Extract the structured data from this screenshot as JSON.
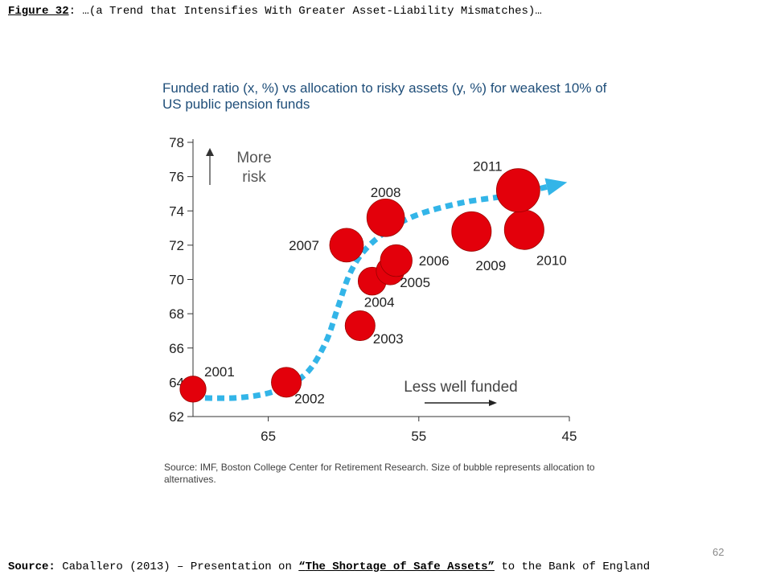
{
  "heading": {
    "label": "Figure 32",
    "separator": ":",
    "text": " …(a Trend that Intensifies With Greater Asset-Liability Mismatches)…"
  },
  "chart_data": {
    "type": "scatter",
    "title": "Funded ratio (x, %) vs allocation to risky assets (y, %) for weakest 10% of US public pension funds",
    "xlabel": "",
    "ylabel": "",
    "xlim": [
      70,
      45
    ],
    "ylim": [
      62,
      78
    ],
    "x_ticks": [
      "65",
      "55",
      "45"
    ],
    "y_ticks": [
      "62",
      "64",
      "66",
      "68",
      "70",
      "72",
      "74",
      "76",
      "78"
    ],
    "grid": false,
    "bubble_color": "#e3000b",
    "trend_color": "#33b5e8",
    "points": [
      {
        "label": "2001",
        "x": 70.0,
        "y": 63.6,
        "size": 0.6
      },
      {
        "label": "2002",
        "x": 63.8,
        "y": 64.0,
        "size": 0.8
      },
      {
        "label": "2003",
        "x": 58.9,
        "y": 67.3,
        "size": 0.8
      },
      {
        "label": "2004",
        "x": 58.1,
        "y": 69.9,
        "size": 0.7
      },
      {
        "label": "2005",
        "x": 56.9,
        "y": 70.5,
        "size": 0.7
      },
      {
        "label": "2006",
        "x": 56.5,
        "y": 71.1,
        "size": 0.9
      },
      {
        "label": "2007",
        "x": 59.8,
        "y": 72.0,
        "size": 1.0
      },
      {
        "label": "2008",
        "x": 57.2,
        "y": 73.6,
        "size": 1.2
      },
      {
        "label": "2009",
        "x": 51.5,
        "y": 72.8,
        "size": 1.3
      },
      {
        "label": "2010",
        "x": 48.0,
        "y": 72.9,
        "size": 1.3
      },
      {
        "label": "2011",
        "x": 48.4,
        "y": 75.2,
        "size": 1.5
      }
    ],
    "trend": [
      [
        70.0,
        63.1
      ],
      [
        67.0,
        63.1
      ],
      [
        64.5,
        63.5
      ],
      [
        62.5,
        64.5
      ],
      [
        61.2,
        66.3
      ],
      [
        60.4,
        68.3
      ],
      [
        59.6,
        70.3
      ],
      [
        58.6,
        71.7
      ],
      [
        57.0,
        72.9
      ],
      [
        55.0,
        73.8
      ],
      [
        52.0,
        74.5
      ],
      [
        49.0,
        74.9
      ],
      [
        46.5,
        75.4
      ]
    ],
    "annotations": [
      {
        "text": "More",
        "kind": "risk"
      },
      {
        "text": "risk",
        "kind": "risk"
      },
      {
        "text": "Less well funded",
        "kind": "funding"
      }
    ]
  },
  "source_note": "Source: IMF, Boston College Center for Retirement Research. Size of bubble represents allocation to alternatives.",
  "page_number": "62",
  "footer": {
    "label": "Source:",
    "text": " Caballero (2013) – Presentation on ",
    "open_quote": "“",
    "title": "The Shortage of Safe Assets",
    "close_quote": "”",
    "tail": " to the Bank of England"
  }
}
